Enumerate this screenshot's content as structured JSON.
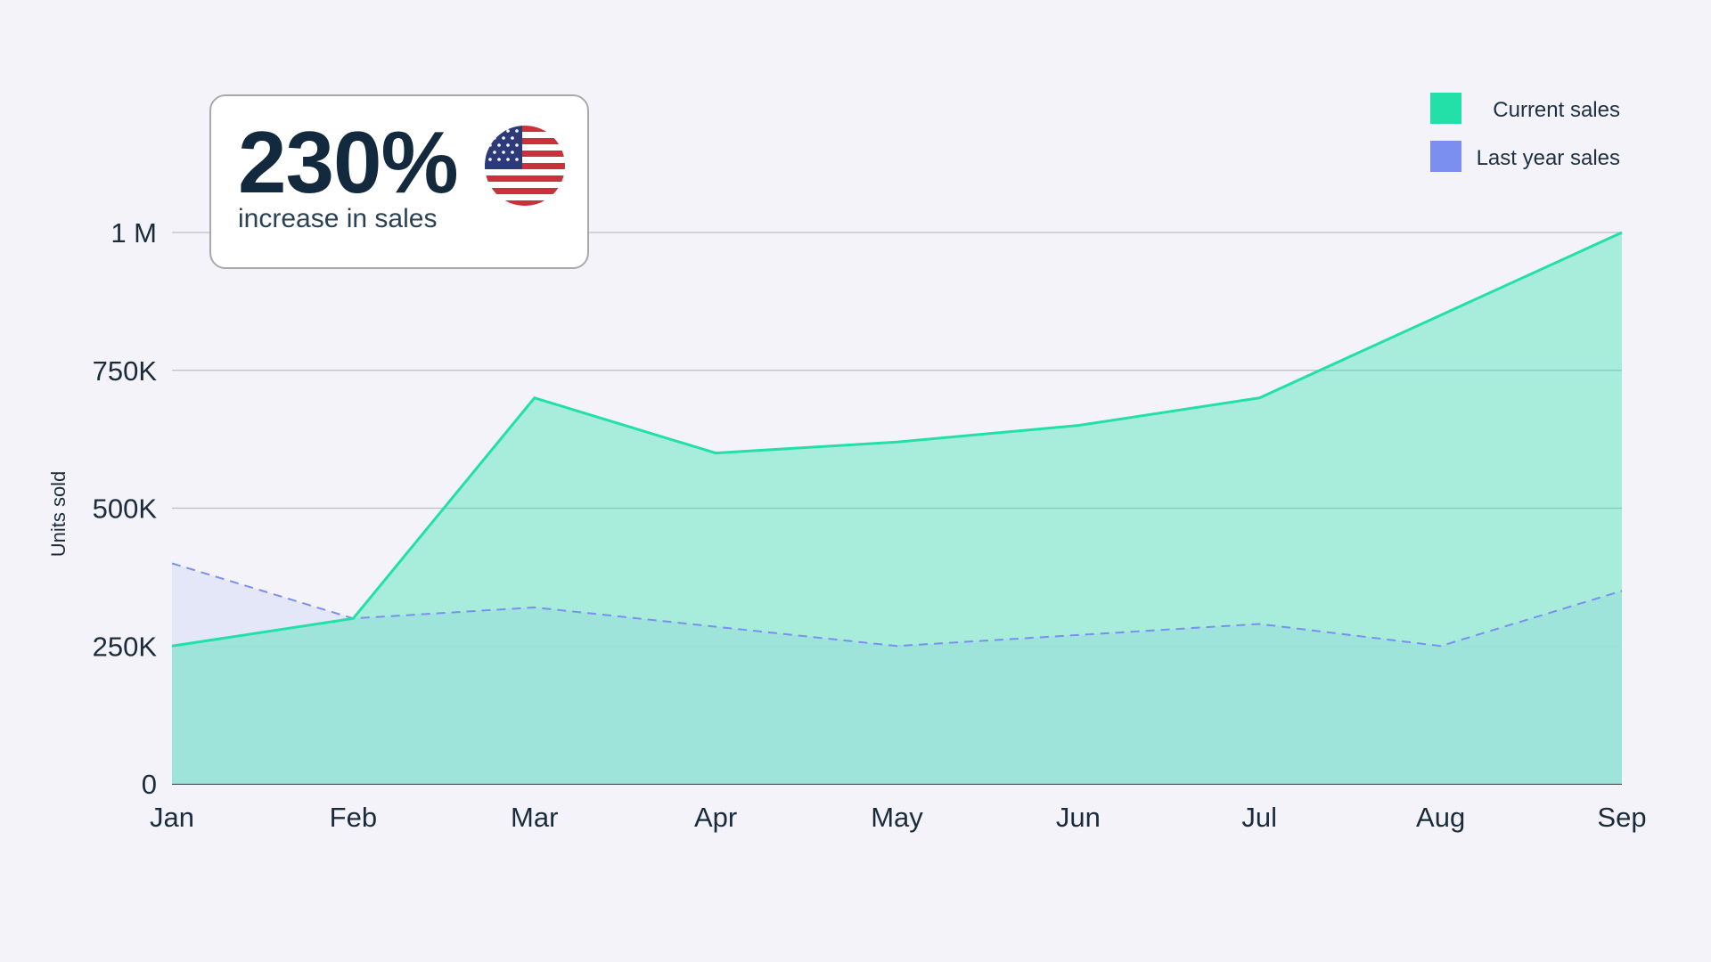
{
  "colors": {
    "background": "#f4f3f9",
    "current_line": "#22e0a8",
    "current_fill": "#aaeee0",
    "last_year_line": "#7b8ff0",
    "last_year_fill": "#e2e5f7",
    "grid": "#bdbdc2",
    "text": "#1a2b3c"
  },
  "stat_card": {
    "value": "230%",
    "caption": "increase in sales",
    "flag_icon": "us-flag-icon"
  },
  "chart_data": {
    "type": "area",
    "title": "",
    "xlabel": "",
    "ylabel": "Units sold",
    "categories": [
      "Jan",
      "Feb",
      "Mar",
      "Apr",
      "May",
      "Jun",
      "Jul",
      "Aug",
      "Sep"
    ],
    "y_ticks": [
      0,
      250000,
      500000,
      750000,
      1000000
    ],
    "y_tick_labels": [
      "0",
      "250K",
      "500K",
      "750K",
      "1 M"
    ],
    "ylim": [
      0,
      1000000
    ],
    "grid": true,
    "legend_position": "top-right",
    "series": [
      {
        "name": "Current sales",
        "style": "solid",
        "values": [
          250000,
          300000,
          700000,
          600000,
          620000,
          650000,
          700000,
          850000,
          1000000
        ]
      },
      {
        "name": "Last year sales",
        "style": "dashed",
        "values": [
          400000,
          300000,
          320000,
          285000,
          250000,
          270000,
          290000,
          250000,
          350000
        ]
      }
    ]
  }
}
